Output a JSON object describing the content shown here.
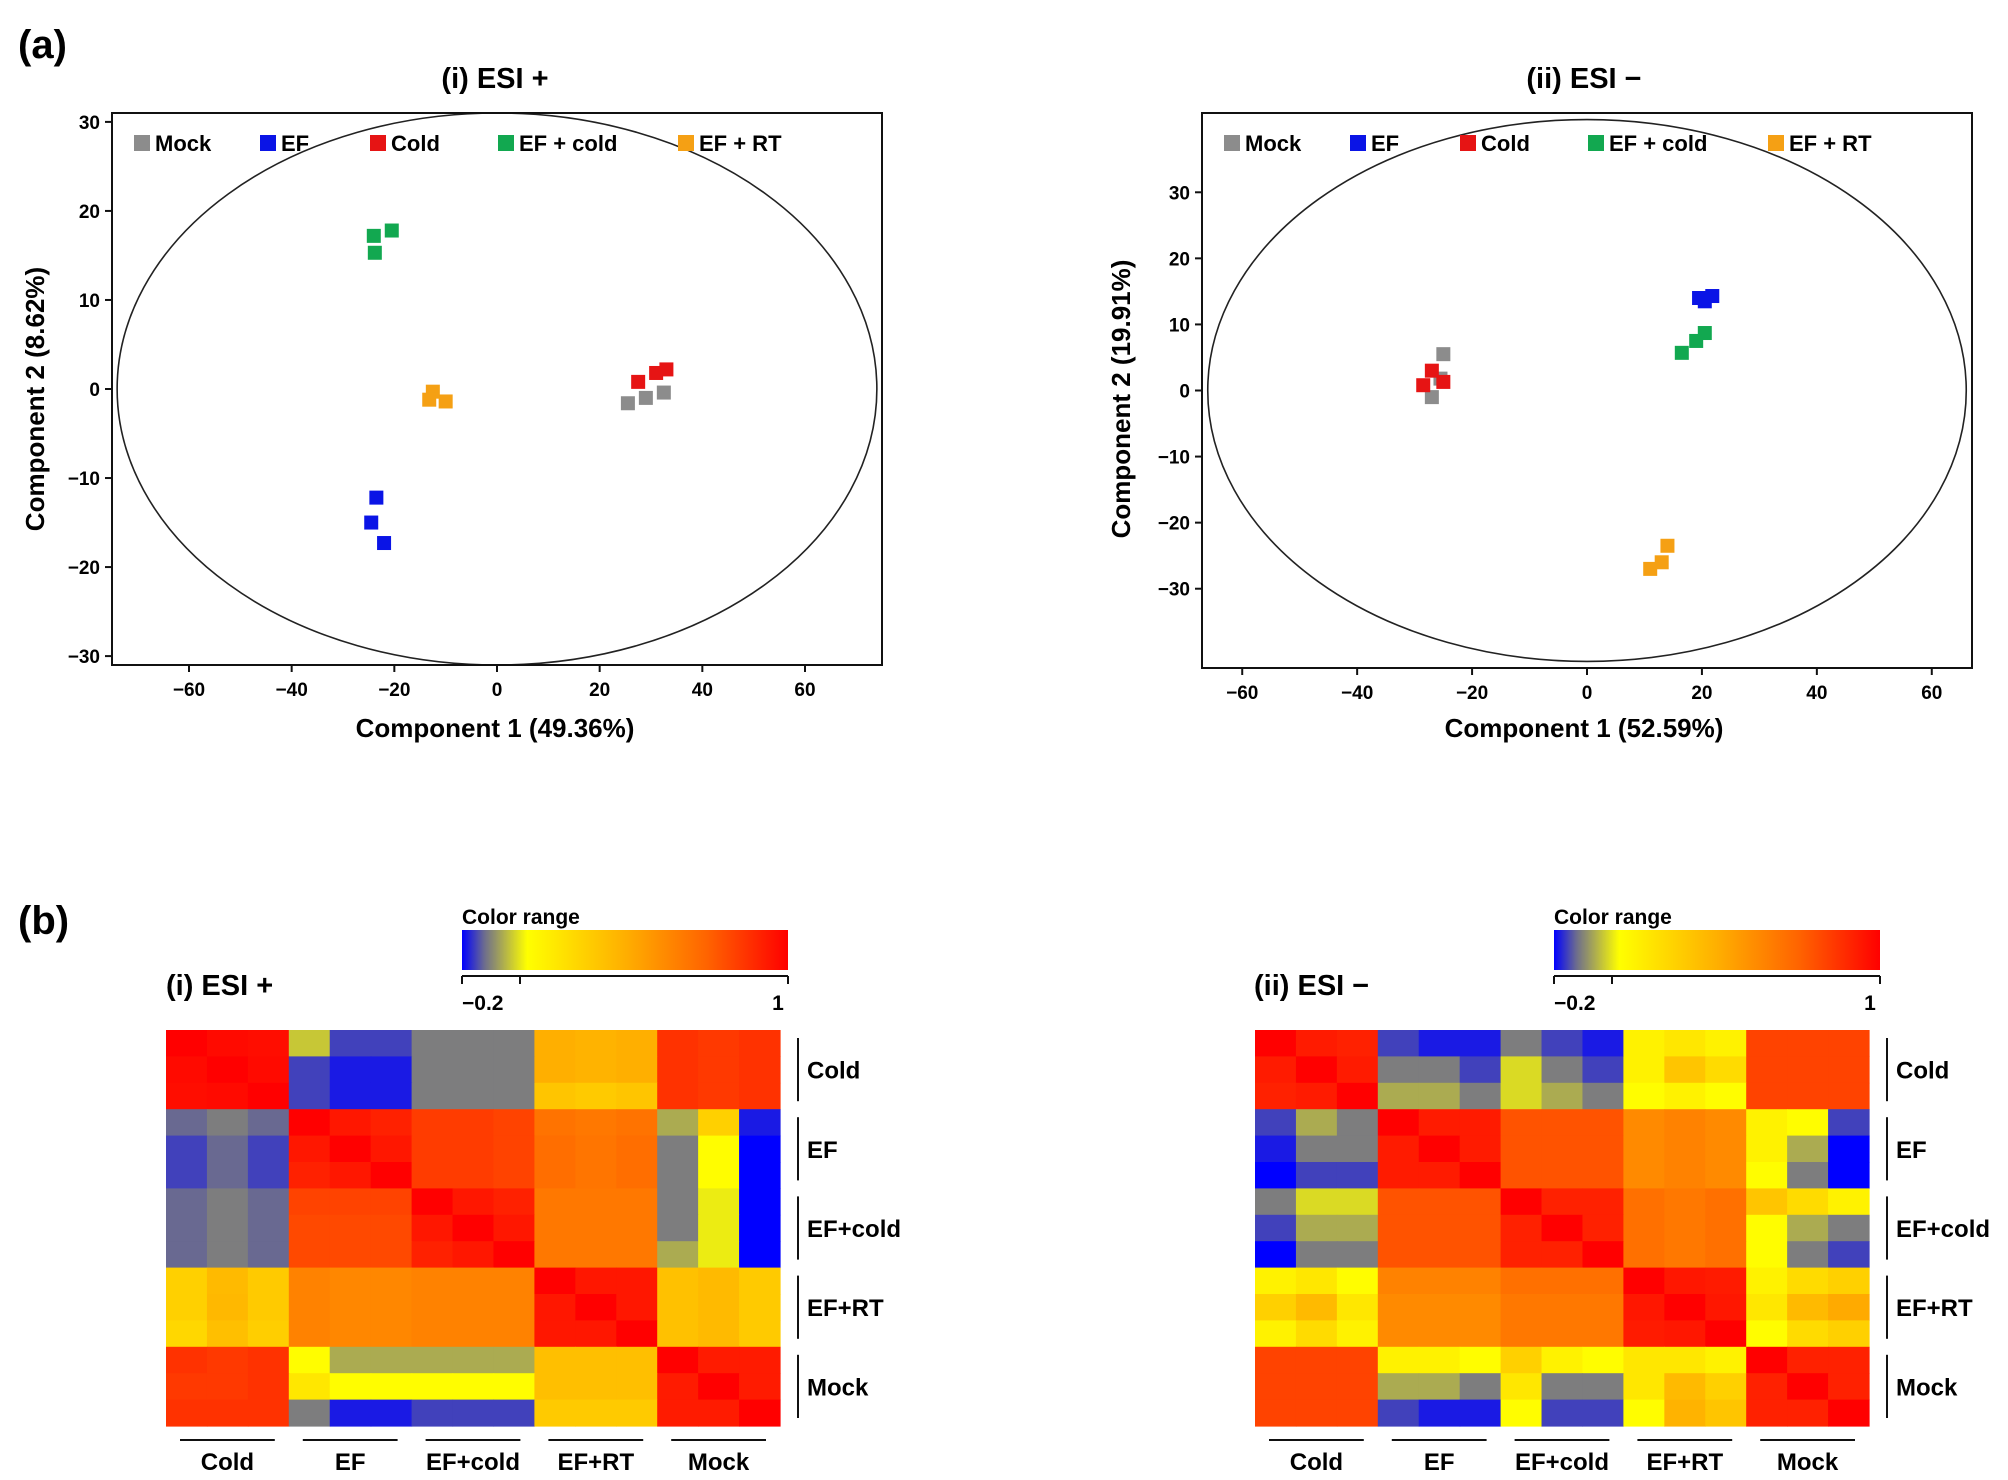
{
  "panel_a_label": "(a)",
  "panel_b_label": "(b)",
  "colors": {
    "Mock": "#8c8c8c",
    "EF": "#0a14e6",
    "Cold": "#e61414",
    "EF + cold": "#12a850",
    "EF + RT": "#f5a014"
  },
  "chart_data": [
    {
      "type": "scatter",
      "title": "(i) ESI +",
      "xlabel": "Component 1 (49.36%)",
      "ylabel": "Component 2 (8.62%)",
      "xlim": [
        -75,
        75
      ],
      "ylim": [
        -31,
        31
      ],
      "xticks": [
        "−60",
        "−40",
        "−20",
        "0",
        "20",
        "40",
        "60"
      ],
      "xtick_values": [
        -60,
        -40,
        -20,
        0,
        20,
        40,
        60
      ],
      "yticks": [
        "−30",
        "−20",
        "−10",
        "0",
        "10",
        "20",
        "30"
      ],
      "ytick_values": [
        -30,
        -20,
        -10,
        0,
        10,
        20,
        30
      ],
      "legend": [
        "Mock",
        "EF",
        "Cold",
        "EF + cold",
        "EF + RT"
      ],
      "ellipse": {
        "cx": 0,
        "cy": 0,
        "rx": 74,
        "ry": 31
      },
      "series": [
        {
          "name": "Mock",
          "points": [
            [
              25.5,
              -1.6
            ],
            [
              29,
              -1
            ],
            [
              32.5,
              -0.4
            ]
          ]
        },
        {
          "name": "EF",
          "points": [
            [
              -23.5,
              -12.2
            ],
            [
              -24.5,
              -15
            ],
            [
              -22,
              -17.3
            ]
          ]
        },
        {
          "name": "Cold",
          "points": [
            [
              27.5,
              0.8
            ],
            [
              31,
              1.8
            ],
            [
              33,
              2.2
            ]
          ]
        },
        {
          "name": "EF + cold",
          "points": [
            [
              -24,
              17.2
            ],
            [
              -20.5,
              17.8
            ],
            [
              -23.8,
              15.3
            ]
          ]
        },
        {
          "name": "EF + RT",
          "points": [
            [
              -12.5,
              -0.3
            ],
            [
              -13.2,
              -1.2
            ],
            [
              -10,
              -1.4
            ]
          ]
        }
      ]
    },
    {
      "type": "scatter",
      "title": "(ii) ESI −",
      "xlabel": "Component 1 (52.59%)",
      "ylabel": "Component 2 (19.91%)",
      "xlim": [
        -67,
        67
      ],
      "ylim": [
        -42,
        42
      ],
      "xticks": [
        "−60",
        "−40",
        "−20",
        "0",
        "20",
        "40",
        "60"
      ],
      "xtick_values": [
        -60,
        -40,
        -20,
        0,
        20,
        40,
        60
      ],
      "yticks": [
        "−30",
        "−20",
        "−10",
        "0",
        "10",
        "20",
        "30"
      ],
      "ytick_values": [
        -30,
        -20,
        -10,
        0,
        10,
        20,
        30
      ],
      "legend": [
        "Mock",
        "EF",
        "Cold",
        "EF + cold",
        "EF + RT"
      ],
      "ellipse": {
        "cx": 0,
        "cy": 0,
        "rx": 66,
        "ry": 41
      },
      "series": [
        {
          "name": "Mock",
          "points": [
            [
              -25,
              5.5
            ],
            [
              -27,
              -1
            ],
            [
              -25.5,
              1.8
            ]
          ]
        },
        {
          "name": "EF",
          "points": [
            [
              19.5,
              14
            ],
            [
              20.5,
              13.5
            ],
            [
              21.8,
              14.3
            ]
          ]
        },
        {
          "name": "Cold",
          "points": [
            [
              -28.5,
              0.8
            ],
            [
              -27,
              3
            ],
            [
              -25,
              1.3
            ]
          ]
        },
        {
          "name": "EF + cold",
          "points": [
            [
              16.5,
              5.7
            ],
            [
              19,
              7.5
            ],
            [
              20.5,
              8.7
            ]
          ]
        },
        {
          "name": "EF + RT",
          "points": [
            [
              11,
              -27
            ],
            [
              13,
              -26
            ],
            [
              14,
              -23.5
            ]
          ]
        }
      ]
    },
    {
      "type": "heatmap",
      "title": "(i) ESI +",
      "colorbar_title": "Color range",
      "colorbar_min_label": "−0.2",
      "colorbar_max_label": "1",
      "range": [
        -0.2,
        1
      ],
      "groups": [
        "Cold",
        "EF",
        "EF+cold",
        "EF+RT",
        "Mock"
      ],
      "values": [
        [
          1.0,
          0.97,
          0.96,
          -0.02,
          -0.15,
          -0.15,
          -0.1,
          -0.1,
          -0.1,
          0.4,
          0.38,
          0.4,
          0.85,
          0.83,
          0.85
        ],
        [
          0.97,
          1.0,
          0.97,
          -0.15,
          -0.18,
          -0.18,
          -0.1,
          -0.1,
          -0.1,
          0.4,
          0.38,
          0.4,
          0.85,
          0.83,
          0.85
        ],
        [
          0.96,
          0.97,
          1.0,
          -0.15,
          -0.18,
          -0.18,
          -0.1,
          -0.1,
          -0.1,
          0.3,
          0.28,
          0.3,
          0.85,
          0.83,
          0.85
        ],
        [
          -0.12,
          -0.1,
          -0.12,
          1.0,
          0.93,
          0.9,
          0.82,
          0.82,
          0.8,
          0.64,
          0.62,
          0.64,
          -0.05,
          0.25,
          -0.18
        ],
        [
          -0.15,
          -0.12,
          -0.15,
          0.93,
          1.0,
          0.93,
          0.82,
          0.82,
          0.8,
          0.66,
          0.63,
          0.66,
          -0.1,
          0.05,
          -0.2
        ],
        [
          -0.15,
          -0.12,
          -0.15,
          0.9,
          0.93,
          1.0,
          0.82,
          0.82,
          0.8,
          0.66,
          0.63,
          0.66,
          -0.1,
          0.05,
          -0.2
        ],
        [
          -0.12,
          -0.1,
          -0.12,
          0.8,
          0.8,
          0.8,
          1.0,
          0.93,
          0.9,
          0.62,
          0.62,
          0.62,
          -0.1,
          0.02,
          -0.2
        ],
        [
          -0.12,
          -0.1,
          -0.12,
          0.78,
          0.78,
          0.78,
          0.93,
          1.0,
          0.93,
          0.62,
          0.62,
          0.62,
          -0.1,
          0.02,
          -0.2
        ],
        [
          -0.12,
          -0.1,
          -0.12,
          0.78,
          0.78,
          0.78,
          0.9,
          0.93,
          1.0,
          0.62,
          0.62,
          0.62,
          -0.05,
          0.02,
          -0.2
        ],
        [
          0.25,
          0.35,
          0.28,
          0.58,
          0.56,
          0.56,
          0.58,
          0.58,
          0.58,
          1.0,
          0.93,
          0.93,
          0.32,
          0.35,
          0.28
        ],
        [
          0.25,
          0.36,
          0.28,
          0.58,
          0.56,
          0.56,
          0.58,
          0.58,
          0.58,
          0.93,
          1.0,
          0.93,
          0.32,
          0.35,
          0.28
        ],
        [
          0.22,
          0.33,
          0.26,
          0.58,
          0.56,
          0.56,
          0.58,
          0.58,
          0.58,
          0.93,
          0.93,
          1.0,
          0.32,
          0.35,
          0.28
        ],
        [
          0.85,
          0.83,
          0.85,
          0.05,
          -0.05,
          -0.05,
          -0.05,
          -0.05,
          -0.05,
          0.33,
          0.33,
          0.33,
          1.0,
          0.92,
          0.92
        ],
        [
          0.83,
          0.83,
          0.85,
          0.15,
          0.05,
          0.05,
          0.05,
          0.05,
          0.05,
          0.33,
          0.33,
          0.33,
          0.92,
          1.0,
          0.92
        ],
        [
          0.85,
          0.85,
          0.85,
          -0.1,
          -0.18,
          -0.18,
          -0.15,
          -0.15,
          -0.15,
          0.28,
          0.28,
          0.28,
          0.92,
          0.92,
          1.0
        ]
      ]
    },
    {
      "type": "heatmap",
      "title": "(ii) ESI −",
      "colorbar_title": "Color range",
      "colorbar_min_label": "−0.2",
      "colorbar_max_label": "1",
      "range": [
        -0.2,
        1
      ],
      "groups": [
        "Cold",
        "EF",
        "EF+cold",
        "EF+RT",
        "Mock"
      ],
      "values": [
        [
          1.0,
          0.92,
          0.9,
          -0.15,
          -0.18,
          -0.18,
          -0.1,
          -0.15,
          -0.18,
          0.1,
          0.15,
          0.1,
          0.8,
          0.8,
          0.8
        ],
        [
          0.92,
          1.0,
          0.92,
          -0.1,
          -0.1,
          -0.15,
          0.0,
          -0.1,
          -0.15,
          0.1,
          0.3,
          0.2,
          0.8,
          0.8,
          0.8
        ],
        [
          0.9,
          0.92,
          1.0,
          -0.05,
          -0.05,
          -0.1,
          0.0,
          -0.05,
          -0.1,
          0.05,
          0.1,
          0.05,
          0.8,
          0.8,
          0.8
        ],
        [
          -0.15,
          -0.05,
          -0.1,
          1.0,
          0.92,
          0.92,
          0.75,
          0.75,
          0.75,
          0.55,
          0.58,
          0.55,
          0.1,
          0.05,
          -0.15
        ],
        [
          -0.18,
          -0.1,
          -0.1,
          0.92,
          1.0,
          0.92,
          0.75,
          0.75,
          0.75,
          0.55,
          0.58,
          0.55,
          0.1,
          -0.05,
          -0.2
        ],
        [
          -0.2,
          -0.15,
          -0.15,
          0.92,
          0.92,
          1.0,
          0.75,
          0.75,
          0.75,
          0.55,
          0.58,
          0.55,
          0.05,
          -0.1,
          -0.2
        ],
        [
          -0.1,
          0.0,
          0.0,
          0.75,
          0.75,
          0.75,
          1.0,
          0.9,
          0.9,
          0.65,
          0.62,
          0.65,
          0.3,
          0.2,
          0.1
        ],
        [
          -0.15,
          -0.05,
          -0.05,
          0.75,
          0.75,
          0.75,
          0.9,
          1.0,
          0.9,
          0.65,
          0.62,
          0.65,
          0.05,
          -0.05,
          -0.1
        ],
        [
          -0.2,
          -0.1,
          -0.1,
          0.75,
          0.75,
          0.75,
          0.9,
          0.9,
          1.0,
          0.65,
          0.62,
          0.65,
          0.05,
          -0.1,
          -0.15
        ],
        [
          0.1,
          0.15,
          0.05,
          0.58,
          0.58,
          0.58,
          0.65,
          0.65,
          0.65,
          1.0,
          0.93,
          0.92,
          0.1,
          0.2,
          0.25
        ],
        [
          0.25,
          0.35,
          0.15,
          0.55,
          0.55,
          0.55,
          0.62,
          0.62,
          0.62,
          0.93,
          1.0,
          0.93,
          0.15,
          0.35,
          0.42
        ],
        [
          0.1,
          0.2,
          0.1,
          0.55,
          0.55,
          0.55,
          0.62,
          0.62,
          0.62,
          0.92,
          0.93,
          1.0,
          0.05,
          0.2,
          0.25
        ],
        [
          0.8,
          0.8,
          0.8,
          0.1,
          0.1,
          0.05,
          0.25,
          0.1,
          0.05,
          0.15,
          0.15,
          0.1,
          1.0,
          0.9,
          0.9
        ],
        [
          0.8,
          0.8,
          0.8,
          -0.05,
          -0.05,
          -0.1,
          0.15,
          -0.1,
          -0.1,
          0.15,
          0.35,
          0.25,
          0.9,
          1.0,
          0.9
        ],
        [
          0.8,
          0.8,
          0.8,
          -0.15,
          -0.18,
          -0.18,
          0.05,
          -0.15,
          -0.15,
          0.05,
          0.38,
          0.3,
          0.9,
          0.9,
          1.0
        ]
      ]
    }
  ]
}
